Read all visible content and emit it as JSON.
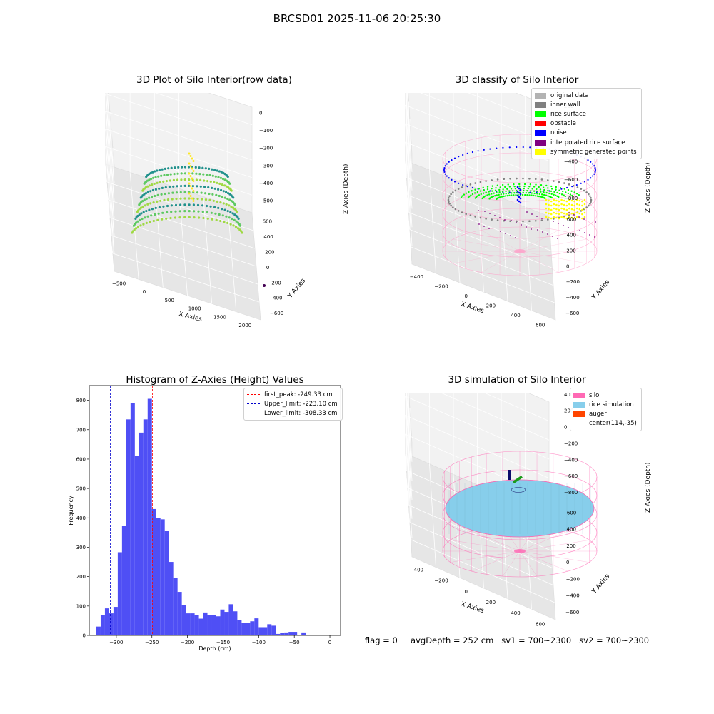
{
  "figure": {
    "suptitle": "BRCSD01 2025-11-06 20:25:30",
    "status": {
      "flag": "flag = 0",
      "avg_depth": "avgDepth = 252 cm",
      "sv1": "sv1 = 700~2300",
      "sv2": "sv2 = 700~2300"
    }
  },
  "panels": {
    "raw": {
      "title": "3D Plot of Silo Interior(row data)",
      "xlabel": "X Axies",
      "ylabel": "Y Axies",
      "zlabel": "Z Axies (Depth)",
      "xticks": [
        "−500",
        "0",
        "500",
        "1000",
        "1500",
        "2000"
      ],
      "yticks": [
        "600",
        "400",
        "200",
        "0",
        "−200",
        "−400",
        "−600"
      ],
      "zticks": [
        "0",
        "−100",
        "−200",
        "−300",
        "−400",
        "−500"
      ]
    },
    "classify": {
      "title": "3D classify of Silo Interior",
      "xlabel": "X Axies",
      "ylabel": "Y Axies",
      "zlabel": "Z Axies (Depth)",
      "xticks": [
        "−400",
        "−200",
        "0",
        "200",
        "400",
        "600"
      ],
      "yticks": [
        "600",
        "400",
        "200",
        "0",
        "−200",
        "−400",
        "−600"
      ],
      "zticks": [
        "200",
        "0",
        "−200",
        "−400",
        "−600",
        "−800"
      ],
      "zticks_partial": "00",
      "legend": [
        {
          "label": "original data",
          "color": "#b3b3b3"
        },
        {
          "label": "inner wall",
          "color": "#808080"
        },
        {
          "label": "rice surface",
          "color": "#00ff00"
        },
        {
          "label": "obstacle",
          "color": "#ff0000"
        },
        {
          "label": "noise",
          "color": "#0000ff"
        },
        {
          "label": "interpolated rice surface",
          "color": "#800080"
        },
        {
          "label": "symmetric generated points",
          "color": "#ffff00"
        }
      ]
    },
    "simulation": {
      "title": "3D simulation of Silo Interior",
      "xlabel": "X Axies",
      "ylabel": "Y Axies",
      "zlabel": "Z Axies (Depth)",
      "xticks": [
        "−400",
        "−200",
        "0",
        "200",
        "400",
        "600"
      ],
      "yticks": [
        "600",
        "400",
        "200",
        "0",
        "−200",
        "−400",
        "−600"
      ],
      "zticks": [
        "400",
        "200",
        "0",
        "−200",
        "−400",
        "−600",
        "−800"
      ],
      "legend": [
        {
          "label": "silo",
          "color": "#ff69b4"
        },
        {
          "label": "rice simulation",
          "color": "#87ceeb"
        },
        {
          "label": "auger",
          "color": "#ff4500"
        },
        {
          "label": "center(114,-35)",
          "color": ""
        }
      ]
    }
  },
  "chart_data": {
    "type": "bar",
    "title": "Histogram of Z-Axies (Height) Values",
    "xlabel": "Depth (cm)",
    "ylabel": "Frequency",
    "xlim": [
      -338,
      15
    ],
    "ylim": [
      0,
      850
    ],
    "xticks": [
      -300,
      -250,
      -200,
      -150,
      -100,
      -50,
      0
    ],
    "xtick_labels": [
      "−300",
      "−250",
      "−200",
      "−150",
      "−100",
      "−50",
      "0"
    ],
    "yticks": [
      0,
      100,
      200,
      300,
      400,
      500,
      600,
      700,
      800
    ],
    "bin_start": -328,
    "bin_width": 6,
    "values": [
      30,
      70,
      92,
      75,
      97,
      283,
      372,
      735,
      790,
      610,
      690,
      735,
      805,
      430,
      400,
      395,
      355,
      250,
      195,
      148,
      102,
      75,
      75,
      68,
      57,
      78,
      70,
      70,
      65,
      88,
      80,
      106,
      82,
      52,
      42,
      42,
      48,
      58,
      28,
      28,
      38,
      33,
      5,
      8,
      10,
      12,
      12,
      2,
      10
    ],
    "bar_color": "#4f4ff5",
    "vlines": [
      {
        "label": "first_peak: -249.33 cm",
        "value": -249.33,
        "color": "#ff0000"
      },
      {
        "label": "Upper_limit: -223.10 cm",
        "value": -223.1,
        "color": "#0000cc"
      },
      {
        "label": "Lower_limit: -308.33 cm",
        "value": -308.33,
        "color": "#0000cc"
      }
    ]
  }
}
